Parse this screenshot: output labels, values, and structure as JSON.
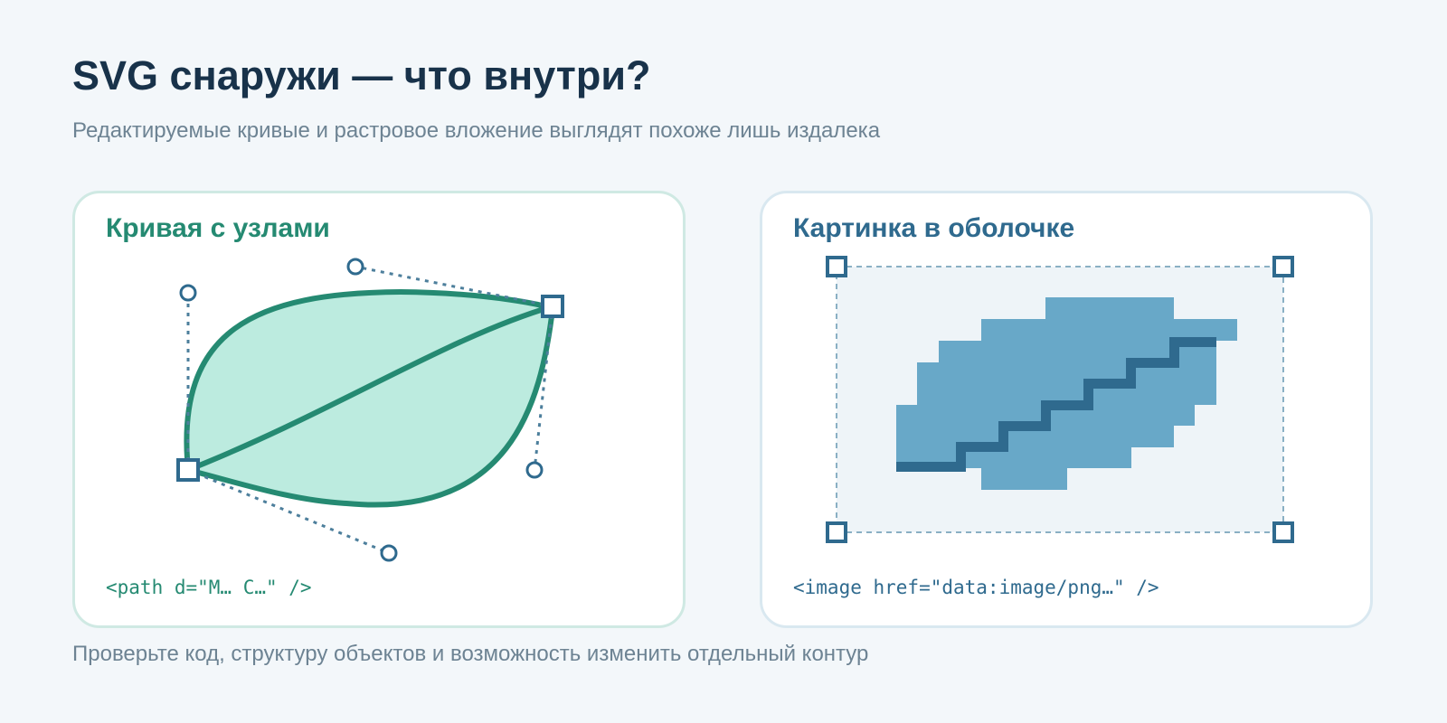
{
  "header": {
    "title": "SVG снаружи — что внутри?",
    "subtitle": "Редактируемые кривые и растровое вложение выглядят похоже лишь издалека"
  },
  "cards": [
    {
      "title": "Кривая с узлами",
      "code": "<path d=\"M… C…\" />",
      "accent_color": "#258a72",
      "fill_color": "#bcebdf"
    },
    {
      "title": "Картинка в оболочке",
      "code": "<image href=\"data:image/png…\" />",
      "accent_color": "#2f6a8e",
      "fill_color": "#68a8c8"
    }
  ],
  "footer": {
    "text": "Проверьте код, структуру объектов и возможность изменить отдельный контур"
  }
}
